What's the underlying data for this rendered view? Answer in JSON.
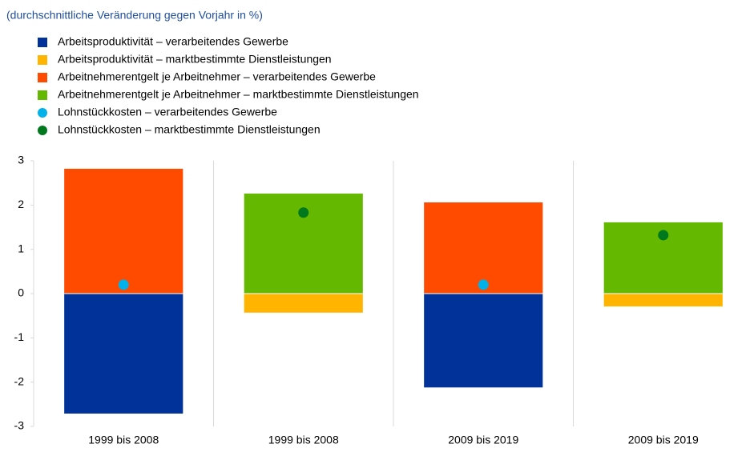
{
  "chart_data": {
    "type": "bar",
    "title": "(durchschnittliche Veränderung gegen Vorjahr in %)",
    "categories": [
      "1999 bis 2008",
      "1999 bis 2008",
      "2009 bis 2019",
      "2009 bis 2019"
    ],
    "series": [
      {
        "name": "Arbeitsproduktivität – verarbeitendes Gewerbe",
        "color": "#003299",
        "marker": "bar",
        "values": [
          -2.71,
          null,
          -2.12,
          null
        ]
      },
      {
        "name": "Arbeitsproduktivität – marktbestimmte Dienstleistungen",
        "color": "#ffb400",
        "marker": "bar",
        "values": [
          null,
          -0.43,
          null,
          -0.29
        ]
      },
      {
        "name": "Arbeitnehmerentgelt je Arbeitnehmer – verarbeitendes Gewerbe",
        "color": "#ff4b00",
        "marker": "bar",
        "values": [
          2.82,
          null,
          2.06,
          null
        ]
      },
      {
        "name": "Arbeitnehmerentgelt je Arbeitnehmer – marktbestimmte Dienstleistungen",
        "color": "#65b800",
        "marker": "bar",
        "values": [
          null,
          2.26,
          null,
          1.61
        ]
      },
      {
        "name": "Lohnstückkosten – verarbeitendes Gewerbe",
        "color": "#00b1ea",
        "marker": "dot",
        "values": [
          0.2,
          null,
          0.2,
          null
        ]
      },
      {
        "name": "Lohnstückkosten – marktbestimmte Dienstleistungen",
        "color": "#00781e",
        "marker": "dot",
        "values": [
          null,
          1.83,
          null,
          1.32
        ]
      }
    ],
    "ylim": [
      -3,
      3
    ],
    "yticks": [
      -3,
      -2,
      -1,
      0,
      1,
      2,
      3
    ],
    "grid": true
  }
}
